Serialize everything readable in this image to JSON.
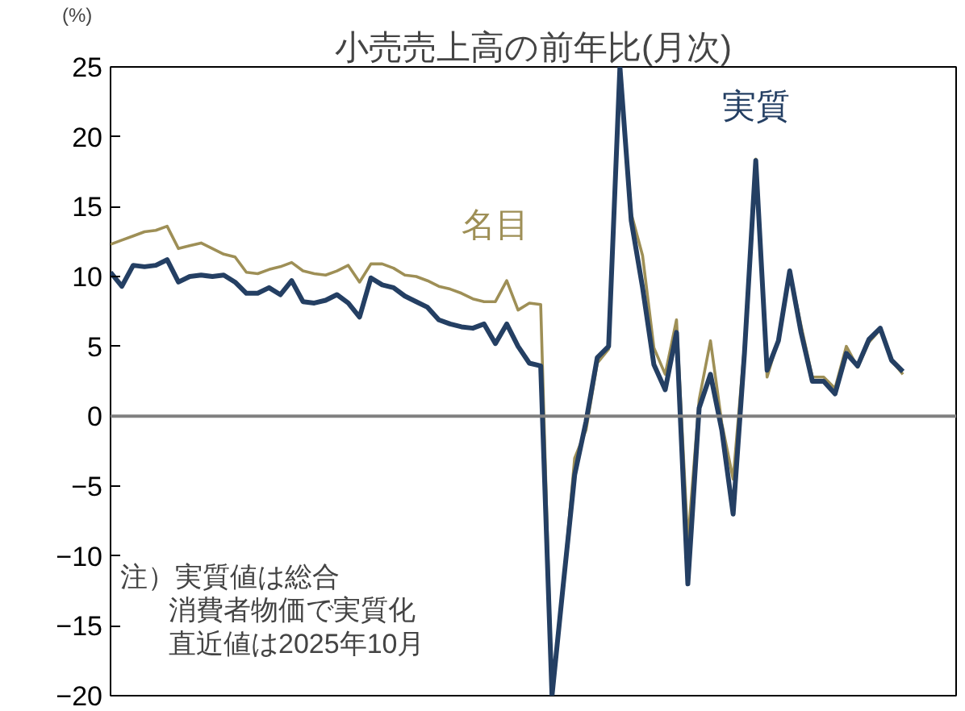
{
  "chart_data": {
    "type": "line",
    "title": "小売売上高の前年比(月次)",
    "ylabel": "(%)",
    "categories": [
      null,
      null,
      null,
      null,
      null,
      null,
      null,
      null,
      null,
      null,
      null,
      null,
      null,
      null,
      null,
      null,
      null,
      null,
      null,
      null,
      null,
      null,
      null,
      null,
      null,
      null,
      null,
      null,
      null,
      null,
      null,
      null,
      null,
      null,
      null,
      null,
      null,
      null,
      null,
      null,
      null,
      null,
      null,
      null,
      null,
      null,
      null,
      null,
      null,
      null,
      null,
      null,
      null,
      null,
      null,
      null,
      null,
      null,
      null,
      null,
      null,
      null,
      null,
      null,
      null,
      null,
      null,
      null,
      null,
      null,
      null
    ],
    "series": [
      {
        "name": "名目",
        "color": "#9e8f56",
        "values": [
          12.3,
          12.6,
          12.9,
          13.2,
          13.3,
          13.6,
          12.0,
          12.2,
          12.4,
          12.0,
          11.6,
          11.4,
          10.3,
          10.2,
          10.5,
          10.7,
          11.0,
          10.4,
          10.2,
          10.1,
          10.4,
          10.8,
          9.6,
          10.9,
          10.9,
          10.6,
          10.1,
          10.0,
          9.7,
          9.3,
          9.1,
          8.8,
          8.4,
          8.2,
          8.2,
          9.7,
          7.6,
          8.1,
          8.0,
          -20,
          -12,
          -3.0,
          -1.0,
          3.8,
          4.8,
          25,
          14.5,
          11.5,
          4.9,
          3.0,
          6.9,
          -9.0,
          1.2,
          5.4,
          -0.5,
          -4.5,
          5.0,
          18.4,
          2.8,
          5.5,
          10.4,
          6.5,
          2.8,
          2.8,
          2.0,
          5.0,
          3.5,
          5.3,
          6.2,
          4.0,
          3.0
        ]
      },
      {
        "name": "実質",
        "color": "#243f63",
        "values": [
          10.3,
          9.3,
          10.8,
          10.7,
          10.8,
          11.2,
          9.6,
          10.0,
          10.1,
          10.0,
          10.1,
          9.6,
          8.8,
          8.8,
          9.2,
          8.7,
          9.7,
          8.2,
          8.1,
          8.3,
          8.7,
          8.1,
          7.1,
          9.9,
          9.4,
          9.2,
          8.6,
          8.2,
          7.8,
          6.9,
          6.6,
          6.4,
          6.3,
          6.6,
          5.2,
          6.6,
          5.0,
          3.8,
          3.6,
          -20,
          -12,
          -4.2,
          -0.4,
          4.2,
          5.0,
          25,
          14,
          9.2,
          3.7,
          1.9,
          6.0,
          -12,
          0.6,
          3.0,
          -1.0,
          -7.0,
          4.5,
          18.3,
          3.3,
          5.4,
          10.4,
          6.0,
          2.5,
          2.5,
          1.6,
          4.5,
          3.6,
          5.5,
          6.3,
          4.0,
          3.2
        ]
      }
    ],
    "ylim": [
      -20,
      25
    ],
    "yticks": [
      -20,
      -15,
      -10,
      -5,
      0,
      5,
      10,
      15,
      20,
      25
    ],
    "ref_lines": [
      {
        "axis": "y",
        "value": 0,
        "color": "#808080"
      }
    ],
    "annotations": [
      "注）実質値は総合",
      "消費者物価で実質化",
      "直近値は2025年10月"
    ],
    "grid": false
  }
}
